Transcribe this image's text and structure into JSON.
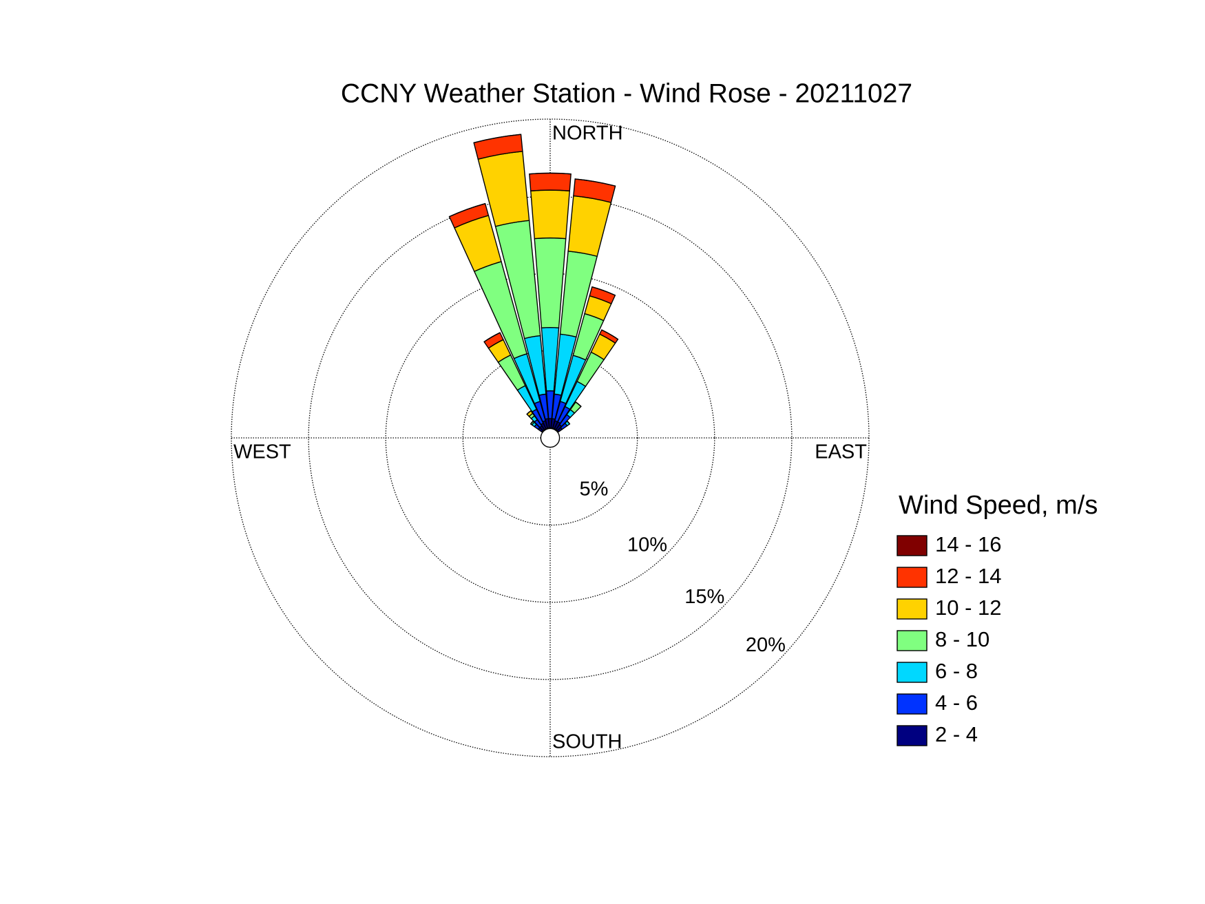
{
  "chart_data": {
    "type": "windrose",
    "title": "CCNY Weather Station - Wind Rose - 20211027",
    "legend_title": "Wind Speed, m/s",
    "directions": [
      "NORTH",
      "EAST",
      "SOUTH",
      "WEST"
    ],
    "x": [
      310,
      320,
      330,
      340,
      350,
      0,
      10,
      20,
      30,
      40,
      50
    ],
    "rlim": [
      0,
      20
    ],
    "rticks": [
      {
        "value": 5,
        "label": "5%"
      },
      {
        "value": 10,
        "label": "10%"
      },
      {
        "value": 15,
        "label": "15%"
      },
      {
        "value": 20,
        "label": "20%"
      }
    ],
    "series": [
      {
        "name": "2 - 4",
        "color": "#000080",
        "values": [
          0.3,
          0.3,
          0.4,
          0.5,
          0.6,
          0.6,
          0.6,
          0.5,
          0.5,
          0.4,
          0.3
        ]
      },
      {
        "name": "4 - 6",
        "color": "#0033ff",
        "values": [
          0.3,
          0.5,
          1.0,
          1.3,
          1.6,
          1.8,
          1.6,
          1.3,
          1.1,
          0.8,
          0.4
        ]
      },
      {
        "name": "6 - 8",
        "color": "#00d8ff",
        "values": [
          0.2,
          0.3,
          1.7,
          3.2,
          3.8,
          4.1,
          3.9,
          3.1,
          1.8,
          0.4,
          0.2
        ]
      },
      {
        "name": "8 - 10",
        "color": "#80ff80",
        "values": [
          0.1,
          0.2,
          2.2,
          6.2,
          7.5,
          5.8,
          5.4,
          2.8,
          2.1,
          0.6,
          0
        ]
      },
      {
        "name": "10 - 12",
        "color": "#ffd200",
        "values": [
          0,
          0.2,
          1.1,
          3.1,
          4.5,
          3.1,
          3.6,
          1.2,
          1.3,
          0,
          0
        ]
      },
      {
        "name": "12 - 14",
        "color": "#ff3300",
        "values": [
          0,
          0,
          0.5,
          0.8,
          1.1,
          1.1,
          1.1,
          0.6,
          0.3,
          0,
          0
        ]
      },
      {
        "name": "14 - 16",
        "color": "#800000",
        "values": [
          0,
          0,
          0,
          0,
          0,
          0,
          0,
          0,
          0,
          0,
          0
        ]
      }
    ]
  }
}
